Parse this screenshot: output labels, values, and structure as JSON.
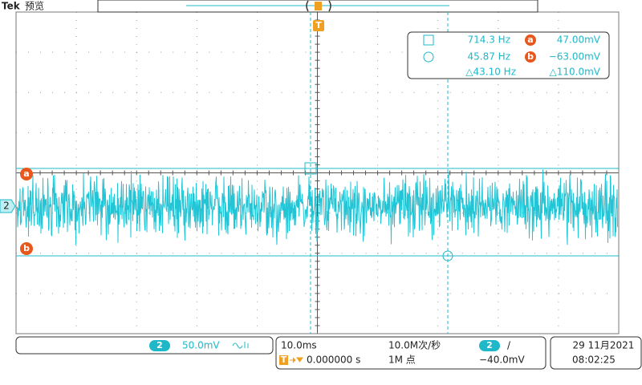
{
  "header": {
    "brand": "Tek",
    "mode": "预览"
  },
  "trigger_marker": "T",
  "channel_marker": "2",
  "cursor_labels": [
    "a",
    "b"
  ],
  "readout": {
    "rows": [
      [
        "714.3 Hz",
        "47.00mV"
      ],
      [
        "45.87 Hz",
        "−63.00mV"
      ],
      [
        "△43.10 Hz",
        "△110.0mV"
      ]
    ]
  },
  "channel_box": {
    "channel": "2",
    "scale": "50.0mV"
  },
  "timebase": {
    "scale": "10.0ms",
    "rate": "10.0M次/秒",
    "channel": "2",
    "slope": "/",
    "trigger_position": "0.000000 s",
    "record": "1M 点",
    "level": "−40.0mV"
  },
  "datetime": {
    "date": "29 11月2021",
    "time": "08:02:25"
  }
}
